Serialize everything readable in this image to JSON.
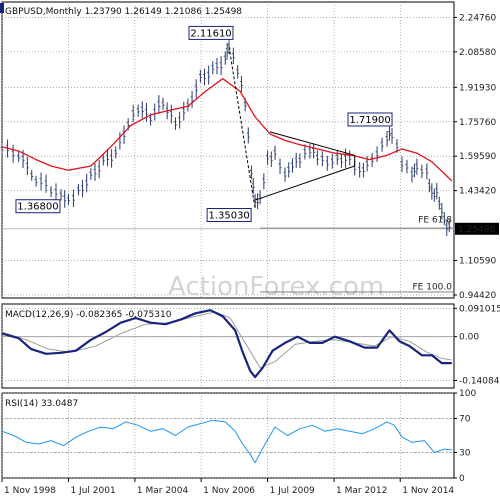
{
  "colors": {
    "price": "#283a6e",
    "ma": "#e0141e",
    "macd": "#1a237e",
    "signal": "#9e9e9e",
    "rsi": "#2196f3",
    "grid": "#7f7f7f",
    "hline": "#808080",
    "background": "#ffffff"
  },
  "watermark": "ActionForex.com",
  "chart_data": [
    {
      "type": "line",
      "title": "GBPUSD,Monthly  1.23790 1.26149 1.21086 1.25498",
      "current_value": "1.25498",
      "ylim": [
        0.93,
        2.32
      ],
      "yticks": [
        {
          "value": 2.2476,
          "label": "2.24760"
        },
        {
          "value": 2.0858,
          "label": "2.08580"
        },
        {
          "value": 1.9193,
          "label": "1.91930"
        },
        {
          "value": 1.7576,
          "label": "1.75760"
        },
        {
          "value": 1.5959,
          "label": "1.59590"
        },
        {
          "value": 1.4342,
          "label": "1.43420"
        },
        {
          "value": 1.1059,
          "label": "1.10590"
        },
        {
          "value": 0.9442,
          "label": "0.94420"
        }
      ],
      "x_axis": {
        "range": [
          1998.83,
          2016.99
        ],
        "ticks": [
          {
            "value": 1998.83,
            "label": "1 Nov 1998"
          },
          {
            "value": 2001.5,
            "label": "1 Jul 2001"
          },
          {
            "value": 2004.17,
            "label": "1 Mar 2004"
          },
          {
            "value": 2006.83,
            "label": "1 Nov 2006"
          },
          {
            "value": 2009.5,
            "label": "1 Jul 2009"
          },
          {
            "value": 2012.17,
            "label": "1 Mar 2012"
          },
          {
            "value": 2014.83,
            "label": "1 Nov 2014"
          }
        ]
      },
      "series": [
        {
          "role": "price",
          "x": [
            1998.83,
            1999.5,
            2000.2,
            2000.8,
            2001.2,
            2001.5,
            2001.9,
            2002.4,
            2002.9,
            2003.4,
            2003.9,
            2004.3,
            2004.8,
            2005.3,
            2005.8,
            2006.3,
            2006.8,
            2007.3,
            2007.8,
            2007.95,
            2008.3,
            2008.6,
            2008.85,
            2009.0,
            2009.2,
            2009.5,
            2009.8,
            2010.2,
            2010.5,
            2010.8,
            2011.2,
            2011.5,
            2011.9,
            2012.3,
            2012.8,
            2013.2,
            2013.5,
            2013.9,
            2014.3,
            2014.5,
            2014.9,
            2015.3,
            2015.5,
            2015.9,
            2016.1,
            2016.3,
            2016.5,
            2016.7,
            2016.9
          ],
          "values": [
            1.63,
            1.6,
            1.49,
            1.44,
            1.42,
            1.39,
            1.43,
            1.5,
            1.57,
            1.61,
            1.75,
            1.82,
            1.78,
            1.85,
            1.75,
            1.83,
            1.96,
            2.0,
            2.05,
            2.11,
            2.0,
            1.85,
            1.53,
            1.39,
            1.4,
            1.58,
            1.6,
            1.5,
            1.55,
            1.58,
            1.63,
            1.6,
            1.57,
            1.59,
            1.58,
            1.52,
            1.55,
            1.6,
            1.68,
            1.7,
            1.57,
            1.52,
            1.55,
            1.52,
            1.42,
            1.42,
            1.33,
            1.26,
            1.255
          ]
        },
        {
          "role": "moving-average",
          "x": [
            1998.83,
            1999.5,
            2000.2,
            2000.8,
            2001.5,
            2002.4,
            2003.2,
            2004.0,
            2004.8,
            2005.5,
            2006.3,
            2007.0,
            2007.7,
            2008.4,
            2009.0,
            2009.6,
            2010.2,
            2010.8,
            2011.5,
            2012.2,
            2012.9,
            2013.6,
            2014.3,
            2014.9,
            2015.5,
            2016.1,
            2016.9
          ],
          "values": [
            1.64,
            1.62,
            1.58,
            1.55,
            1.53,
            1.55,
            1.64,
            1.74,
            1.79,
            1.81,
            1.83,
            1.9,
            1.96,
            1.9,
            1.78,
            1.7,
            1.67,
            1.65,
            1.63,
            1.61,
            1.6,
            1.58,
            1.6,
            1.63,
            1.61,
            1.57,
            1.48
          ]
        }
      ],
      "annotations": [
        {
          "label": "1.36800",
          "x": 2001.4,
          "y": 1.368
        },
        {
          "label": "2.11610",
          "x": 2007.95,
          "y": 2.1161
        },
        {
          "label": "1.35030",
          "x": 2009.0,
          "y": 1.3503
        },
        {
          "label": "1.71900",
          "x": 2014.5,
          "y": 1.719
        },
        {
          "label": "FE 61.8",
          "x": 2016.99,
          "y": 1.275
        },
        {
          "label": "FE 100.0",
          "x": 2016.99,
          "y": 0.96
        }
      ],
      "trendlines": [
        {
          "kind": "triangle-upper",
          "from": [
            2009.6,
            1.71
          ],
          "to": [
            2013.0,
            1.6
          ]
        },
        {
          "kind": "triangle-lower",
          "from": [
            2009.0,
            1.39
          ],
          "to": [
            2013.0,
            1.55
          ]
        },
        {
          "kind": "triangle-close",
          "from": [
            2013.0,
            1.6
          ],
          "to": [
            2013.0,
            1.55
          ]
        },
        {
          "kind": "projection",
          "from": [
            2007.95,
            2.11
          ],
          "to": [
            2009.0,
            1.35
          ]
        }
      ],
      "levels": [
        {
          "label": "FE 61.8",
          "value": 1.258,
          "from_x": 2009.2
        },
        {
          "label": "FE 100.0",
          "value": 0.958,
          "from_x": 2009.2
        }
      ],
      "legend": "none"
    },
    {
      "type": "line",
      "title": "MACD(12,26,9) -0.082365 -0.075310",
      "ylim": [
        -0.165,
        0.105
      ],
      "yticks": [
        {
          "value": 0.091015,
          "label": "0.091015"
        },
        {
          "value": 0.0,
          "label": "0.00"
        },
        {
          "value": -0.140843,
          "label": "-0.140843"
        }
      ],
      "series": [
        {
          "role": "macd",
          "x": [
            1998.83,
            1999.5,
            2000.0,
            2000.6,
            2001.2,
            2001.8,
            2002.4,
            2003.0,
            2003.6,
            2004.2,
            2004.8,
            2005.4,
            2006.0,
            2006.6,
            2007.2,
            2007.7,
            2008.2,
            2008.5,
            2008.8,
            2009.0,
            2009.3,
            2009.7,
            2010.2,
            2010.7,
            2011.2,
            2011.7,
            2012.2,
            2012.8,
            2013.4,
            2013.9,
            2014.4,
            2014.8,
            2015.2,
            2015.7,
            2016.1,
            2016.5,
            2016.9
          ],
          "values": [
            0.01,
            -0.005,
            -0.04,
            -0.055,
            -0.052,
            -0.045,
            -0.01,
            0.015,
            0.045,
            0.06,
            0.045,
            0.04,
            0.055,
            0.075,
            0.085,
            0.065,
            0.02,
            -0.05,
            -0.11,
            -0.13,
            -0.1,
            -0.045,
            -0.02,
            0.0,
            -0.02,
            -0.02,
            0.0,
            -0.015,
            -0.035,
            -0.035,
            0.02,
            -0.015,
            -0.03,
            -0.06,
            -0.06,
            -0.085,
            -0.085
          ]
        },
        {
          "role": "signal",
          "x": [
            1998.83,
            1999.8,
            2000.7,
            2001.6,
            2002.6,
            2003.6,
            2004.6,
            2005.6,
            2006.6,
            2007.4,
            2008.0,
            2008.6,
            2009.2,
            2009.8,
            2010.6,
            2011.4,
            2012.2,
            2013.0,
            2013.8,
            2014.5,
            2015.2,
            2015.9,
            2016.5,
            2016.9
          ],
          "values": [
            0.015,
            -0.01,
            -0.04,
            -0.05,
            -0.03,
            0.01,
            0.04,
            0.045,
            0.065,
            0.08,
            0.06,
            -0.02,
            -0.1,
            -0.08,
            -0.025,
            -0.015,
            -0.01,
            -0.02,
            -0.03,
            0.0,
            -0.015,
            -0.05,
            -0.07,
            -0.075
          ]
        }
      ]
    },
    {
      "type": "line",
      "title": "RSI(14) 33.0487",
      "ylim": [
        0,
        100
      ],
      "yticks": [
        {
          "value": 100,
          "label": "100"
        },
        {
          "value": 70,
          "label": "70"
        },
        {
          "value": 30,
          "label": "30"
        },
        {
          "value": 0,
          "label": "0"
        }
      ],
      "series": [
        {
          "role": "rsi",
          "x": [
            1998.83,
            1999.3,
            1999.8,
            2000.3,
            2000.8,
            2001.3,
            2001.8,
            2002.3,
            2002.8,
            2003.3,
            2003.8,
            2004.3,
            2004.8,
            2005.3,
            2005.8,
            2006.3,
            2006.8,
            2007.3,
            2007.8,
            2008.2,
            2008.5,
            2008.8,
            2009.0,
            2009.4,
            2009.8,
            2010.3,
            2010.8,
            2011.3,
            2011.8,
            2012.3,
            2012.8,
            2013.3,
            2013.8,
            2014.3,
            2014.6,
            2014.9,
            2015.3,
            2015.8,
            2016.2,
            2016.6,
            2016.9
          ],
          "values": [
            55,
            50,
            42,
            40,
            44,
            38,
            48,
            55,
            60,
            58,
            66,
            62,
            55,
            58,
            50,
            60,
            64,
            68,
            66,
            55,
            40,
            28,
            18,
            40,
            60,
            50,
            58,
            62,
            55,
            58,
            55,
            52,
            58,
            66,
            62,
            48,
            42,
            44,
            30,
            34,
            33
          ]
        }
      ]
    }
  ]
}
